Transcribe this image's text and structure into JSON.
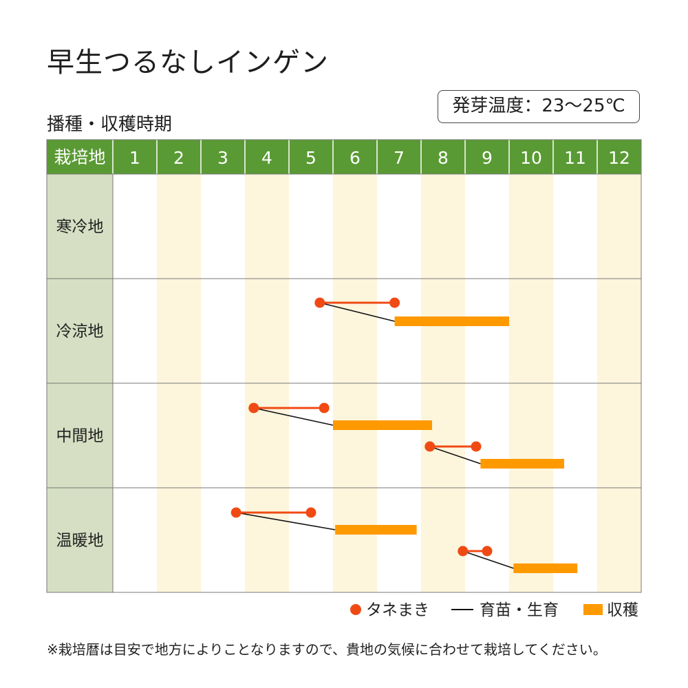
{
  "title": "早生つるなしインゲン",
  "subtitle": "播種・収穫時期",
  "germination_temp": "発芽温度：23〜25℃",
  "note": "※栽培暦は目安で地方によりことなりますので、貴地の気候に合わせて栽培してください。",
  "colors": {
    "header_green": "#5a9a34",
    "label_column": "#d6dfc3",
    "stripe": "#fdf5dc",
    "grid": "#777777",
    "sowing": "#f04a14",
    "harvest": "#ff9900",
    "seedling_line": "#111111"
  },
  "chart_data": {
    "type": "gantt",
    "header_label": "栽培地",
    "months": [
      "1",
      "2",
      "3",
      "4",
      "5",
      "6",
      "7",
      "8",
      "9",
      "10",
      "11",
      "12"
    ],
    "legend": {
      "sowing": "タネまき",
      "growing": "育苗・生育",
      "harvest": "収穫"
    },
    "regions": [
      {
        "name": "寒冷地",
        "periods": []
      },
      {
        "name": "冷涼地",
        "periods": [
          {
            "sow": [
              5.7,
              7.4
            ],
            "harvest": [
              7.4,
              10.0
            ]
          }
        ]
      },
      {
        "name": "中間地",
        "periods": [
          {
            "sow": [
              4.2,
              5.8
            ],
            "harvest": [
              6.0,
              8.25
            ]
          },
          {
            "sow": [
              8.2,
              9.25
            ],
            "harvest": [
              9.35,
              11.25
            ]
          }
        ]
      },
      {
        "name": "温暖地",
        "periods": [
          {
            "sow": [
              3.8,
              5.5
            ],
            "harvest": [
              6.05,
              7.9
            ]
          },
          {
            "sow": [
              8.95,
              9.5
            ],
            "harvest": [
              10.1,
              11.55
            ]
          }
        ]
      }
    ]
  }
}
